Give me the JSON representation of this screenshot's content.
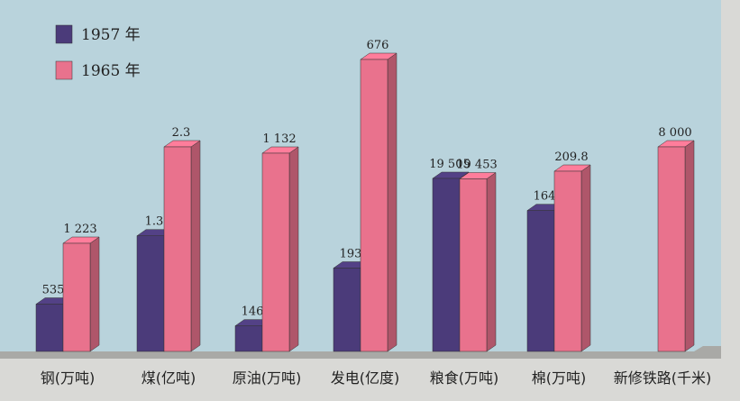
{
  "chart_data": {
    "type": "bar3d",
    "categories": [
      "钢(万吨)",
      "煤(亿吨)",
      "原油(万吨)",
      "发电(亿度)",
      "粮食(万吨)",
      "棉(万吨)",
      "新修铁路(千米)"
    ],
    "series": [
      {
        "name": "1957 年",
        "color": "#4b3b7a",
        "values": [
          535,
          1.3,
          146,
          193,
          19505,
          164,
          null
        ],
        "value_labels": [
          "535",
          "1.3",
          "146",
          "193",
          "19 505",
          "164",
          null
        ]
      },
      {
        "name": "1965 年",
        "color": "#e9728d",
        "values": [
          1223,
          2.3,
          1132,
          676,
          19453,
          209.8,
          8000
        ],
        "value_labels": [
          "1 223",
          "2.3",
          "1 132",
          "676",
          "19 453",
          "209.8",
          "8 000"
        ]
      }
    ]
  }
}
